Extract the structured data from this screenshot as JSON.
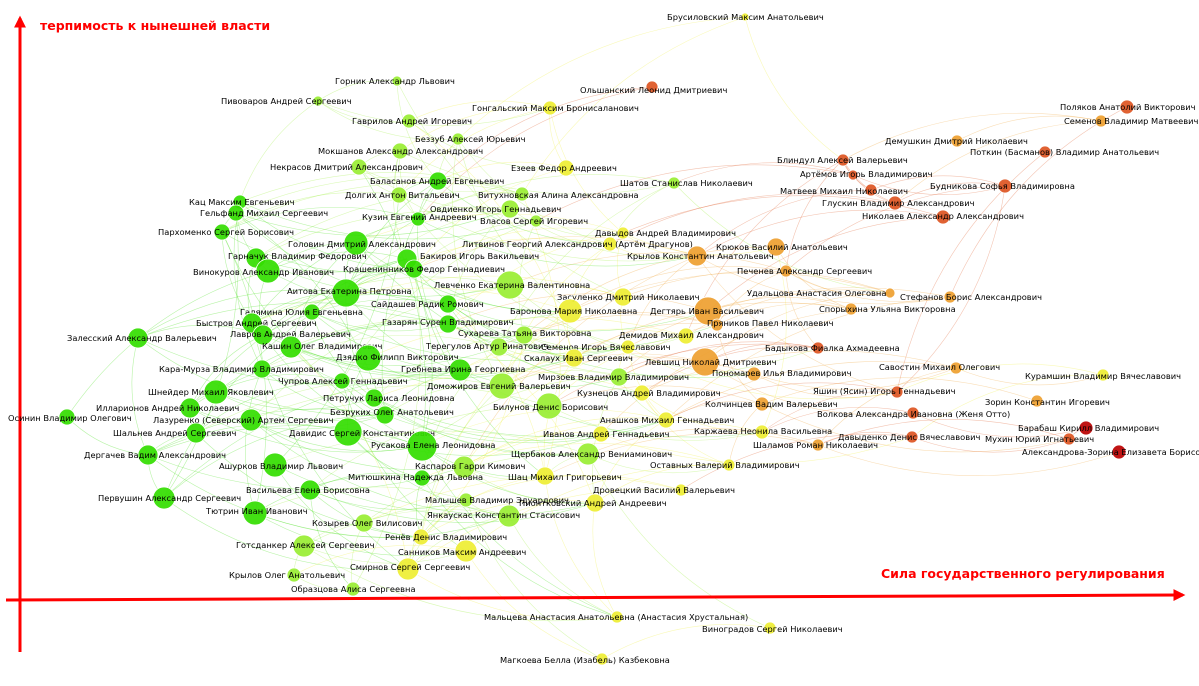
{
  "axes": {
    "y_title": "терпимость к нынешней власти",
    "x_title": "Сила государственного регулирования",
    "color": "#ff0000"
  },
  "palette": {
    "green": "#33dd00",
    "light_green": "#99ee33",
    "yellow": "#eeee33",
    "orange": "#eea030",
    "red_orange": "#dd5522",
    "red": "#bb0000"
  },
  "nodes": [
    {
      "name": "Брусиловский Максим Анатольевич",
      "c": "yellow"
    },
    {
      "name": "Горник Александр Львович",
      "c": "light_green"
    },
    {
      "name": "Ольшанский Леонид Дмитриевич",
      "c": "red_orange"
    },
    {
      "name": "Пивоваров Андрей Сергеевич",
      "c": "light_green"
    },
    {
      "name": "Гонгальский Максим Бронисаланович",
      "c": "yellow"
    },
    {
      "name": "Поляков Анатолий Викторович",
      "c": "red_orange"
    },
    {
      "name": "Гаврилов Андрей Игоревич",
      "c": "light_green"
    },
    {
      "name": "Семенов Владимир Матвеевич",
      "c": "orange"
    },
    {
      "name": "Беззуб Алексей Юрьевич",
      "c": "light_green"
    },
    {
      "name": "Демушкин Дмитрий Николаевич",
      "c": "orange"
    },
    {
      "name": "Мокшанов Александр Александрович",
      "c": "light_green"
    },
    {
      "name": "Поткин (Басманов) Владимир Анатольевич",
      "c": "red_orange"
    },
    {
      "name": "Некрасов Дмитрий Александрович",
      "c": "light_green"
    },
    {
      "name": "Блиндул Алексей Валерьевич",
      "c": "red_orange"
    },
    {
      "name": "Езеев Федор Андреевич",
      "c": "yellow"
    },
    {
      "name": "Артёмов Игорь Владимирович",
      "c": "red_orange"
    },
    {
      "name": "Шатов Станислав Николаевич",
      "c": "light_green"
    },
    {
      "name": "Баласанов Андрей Евгеньевич",
      "c": "green"
    },
    {
      "name": "Будникова Софья Владимировна",
      "c": "red_orange"
    },
    {
      "name": "Матвеев Михаил Николаевич",
      "c": "red_orange"
    },
    {
      "name": "Долгих Антон Витальевич",
      "c": "light_green"
    },
    {
      "name": "Витухновская Алина Александровна",
      "c": "light_green"
    },
    {
      "name": "Кац Максим Евгеньевич",
      "c": "green"
    },
    {
      "name": "Глускин Владимир Александрович",
      "c": "red_orange"
    },
    {
      "name": "Гельфанд Михаил Сергеевич",
      "c": "green"
    },
    {
      "name": "Овдиенко Игорь Геннадьевич",
      "c": "light_green"
    },
    {
      "name": "Кузин Евгений Андреевич",
      "c": "green"
    },
    {
      "name": "Николаев Александр Александрович",
      "c": "red_orange"
    },
    {
      "name": "Власов Сергей Игоревич",
      "c": "light_green"
    },
    {
      "name": "Пархоменко Сергей Борисович",
      "c": "green"
    },
    {
      "name": "Давыдов Андрей Владимирович",
      "c": "yellow"
    },
    {
      "name": "Головин Дмитрий Александрович",
      "c": "green"
    },
    {
      "name": "Литвинов Георгий Александрович (Артём Драгунов)",
      "c": "yellow"
    },
    {
      "name": "Крюков Василий Анатольевич",
      "c": "orange"
    },
    {
      "name": "Гарначук Владимир Федорович",
      "c": "green"
    },
    {
      "name": "Крылов Константин Анатольевич",
      "c": "orange"
    },
    {
      "name": "Бакиров Игорь Вакильевич",
      "c": "green"
    },
    {
      "name": "Винокуров Александр Иванович",
      "c": "green"
    },
    {
      "name": "Крашенинников Федор Геннадиевич",
      "c": "green"
    },
    {
      "name": "Печенев Александр Сергеевич",
      "c": "orange"
    },
    {
      "name": "Левченко Екатерина Валентиновна",
      "c": "light_green"
    },
    {
      "name": "Аитова Екатерина Петровна",
      "c": "green"
    },
    {
      "name": "Удальцова Анастасия Олеговна",
      "c": "orange"
    },
    {
      "name": "Засуленко Дмитрий Николаевич",
      "c": "yellow"
    },
    {
      "name": "Стефанов Борис Александрович",
      "c": "orange"
    },
    {
      "name": "Сайдашев Радик Ромович",
      "c": "green"
    },
    {
      "name": "Спорыхина Ульяна Викторовна",
      "c": "orange"
    },
    {
      "name": "Баронова Мария Николаевна",
      "c": "yellow"
    },
    {
      "name": "Дегтярь Иван Васильевич",
      "c": "orange"
    },
    {
      "name": "Галямина Юлия Евгеньевна",
      "c": "green"
    },
    {
      "name": "Быстров Андрей Сергеевич",
      "c": "green"
    },
    {
      "name": "Газарян Сурен Владимирович",
      "c": "green"
    },
    {
      "name": "Пряников Павел Николаевич",
      "c": "orange"
    },
    {
      "name": "Лавров Андрей Валерьевич",
      "c": "green"
    },
    {
      "name": "Сухарева Татьяна Викторовна",
      "c": "light_green"
    },
    {
      "name": "Демидов Михаил Александрович",
      "c": "yellow"
    },
    {
      "name": "Залесский Александр Валерьевич",
      "c": "green"
    },
    {
      "name": "Кашин Олег Владимирович",
      "c": "green"
    },
    {
      "name": "Терегулов Артур Ринатович",
      "c": "light_green"
    },
    {
      "name": "Семенов Игорь Вячеславович",
      "c": "yellow"
    },
    {
      "name": "Бадыкова Фиалка Ахмадеевна",
      "c": "red_orange"
    },
    {
      "name": "Дзядко Филипп Викторович",
      "c": "green"
    },
    {
      "name": "Скалаух Иван Сергеевич",
      "c": "yellow"
    },
    {
      "name": "Левшиц Николай Дмитриевич",
      "c": "orange"
    },
    {
      "name": "Кара-Мурза Владимир Владимирович",
      "c": "green"
    },
    {
      "name": "Гребнева Ирина Георгиевна",
      "c": "green"
    },
    {
      "name": "Пономарев Илья Владимирович",
      "c": "orange"
    },
    {
      "name": "Савостин Михаил Олегович",
      "c": "orange"
    },
    {
      "name": "Мирзоев Владимир Владимирович",
      "c": "light_green"
    },
    {
      "name": "Курамшин Владимир Вячеславович",
      "c": "yellow"
    },
    {
      "name": "Чупров Алексей Геннадьевич",
      "c": "green"
    },
    {
      "name": "Доможиров Евгений Валерьевич",
      "c": "light_green"
    },
    {
      "name": "Шнейдер Михаил Яковлевич",
      "c": "green"
    },
    {
      "name": "Кузнецов Андрей Владимирович",
      "c": "yellow"
    },
    {
      "name": "Яшин (Ясин) Игорь Геннадьевич",
      "c": "red_orange"
    },
    {
      "name": "Петручук Лариса Леонидовна",
      "c": "green"
    },
    {
      "name": "Зорин Константин Игоревич",
      "c": "orange"
    },
    {
      "name": "Илларионов Андрей Николаевич",
      "c": "green"
    },
    {
      "name": "Колчинцев Вадим Валерьевич",
      "c": "orange"
    },
    {
      "name": "Осинин Владимир Олегович",
      "c": "green"
    },
    {
      "name": "Безруких Олег Анатольевич",
      "c": "green"
    },
    {
      "name": "Билунов Денис Борисович",
      "c": "light_green"
    },
    {
      "name": "Лазуренко (Северский) Артем Сергеевич",
      "c": "green"
    },
    {
      "name": "Анашков Михаил Геннадьевич",
      "c": "yellow"
    },
    {
      "name": "Волкова Александра Ивановна (Женя Отто)",
      "c": "red_orange"
    },
    {
      "name": "Барабаш Кирилл Владимирович",
      "c": "red"
    },
    {
      "name": "Шальнев Андрей Сергеевич",
      "c": "green"
    },
    {
      "name": "Давидис Сергей Константинович",
      "c": "green"
    },
    {
      "name": "Иванов Андрей Геннадьевич",
      "c": "yellow"
    },
    {
      "name": "Каржаева Неонила Васильевна",
      "c": "yellow"
    },
    {
      "name": "Давыденко Денис Вячеславович",
      "c": "red_orange"
    },
    {
      "name": "Мухин Юрий Игнатьевич",
      "c": "red_orange"
    },
    {
      "name": "Русакова Елена Леонидовна",
      "c": "green"
    },
    {
      "name": "Шаламов Роман Николаевич",
      "c": "orange"
    },
    {
      "name": "Александрова-Зорина Елизавета Борисо",
      "c": "red"
    },
    {
      "name": "Дергачев Вадим Александрович",
      "c": "green"
    },
    {
      "name": "Щербаков Александр Вениаминович",
      "c": "light_green"
    },
    {
      "name": "Ашурков Владимир Львович",
      "c": "green"
    },
    {
      "name": "Каспаров Гарри Кимович",
      "c": "light_green"
    },
    {
      "name": "Оставных Валерий Владимирович",
      "c": "yellow"
    },
    {
      "name": "Митюшкина Надежда Львовна",
      "c": "green"
    },
    {
      "name": "Шац Михаил Григорьевич",
      "c": "yellow"
    },
    {
      "name": "Васильева Елена Борисовна",
      "c": "green"
    },
    {
      "name": "Дровецкий Василий Валерьевич",
      "c": "yellow"
    },
    {
      "name": "Первушин Александр Сергеевич",
      "c": "green"
    },
    {
      "name": "Малышев Владимир Эдуардович",
      "c": "light_green"
    },
    {
      "name": "Тютрин Иван Иванович",
      "c": "green"
    },
    {
      "name": "Пионтковский Андрей Андреевич",
      "c": "yellow"
    },
    {
      "name": "Янкаускас Константин Стасисович",
      "c": "light_green"
    },
    {
      "name": "Козырев Олег Вилисович",
      "c": "light_green"
    },
    {
      "name": "Ренёв Денис Владимирович",
      "c": "yellow"
    },
    {
      "name": "Готсданкер Алексей Сергеевич",
      "c": "light_green"
    },
    {
      "name": "Санников Максим Андреевич",
      "c": "yellow"
    },
    {
      "name": "Смирнов Сергей Сергеевич",
      "c": "yellow"
    },
    {
      "name": "Крылов Олег Анатольевич",
      "c": "light_green"
    },
    {
      "name": "Образцова Алиса Сергеевна",
      "c": "light_green"
    },
    {
      "name": "Мальцева Анастасия Анатольевна (Анастасия Хрустальная)",
      "c": "yellow"
    },
    {
      "name": "Виноградов Сергей Николаевич",
      "c": "yellow"
    },
    {
      "name": "Магкоева Белла (Изабель) Казбековна",
      "c": "yellow"
    }
  ]
}
